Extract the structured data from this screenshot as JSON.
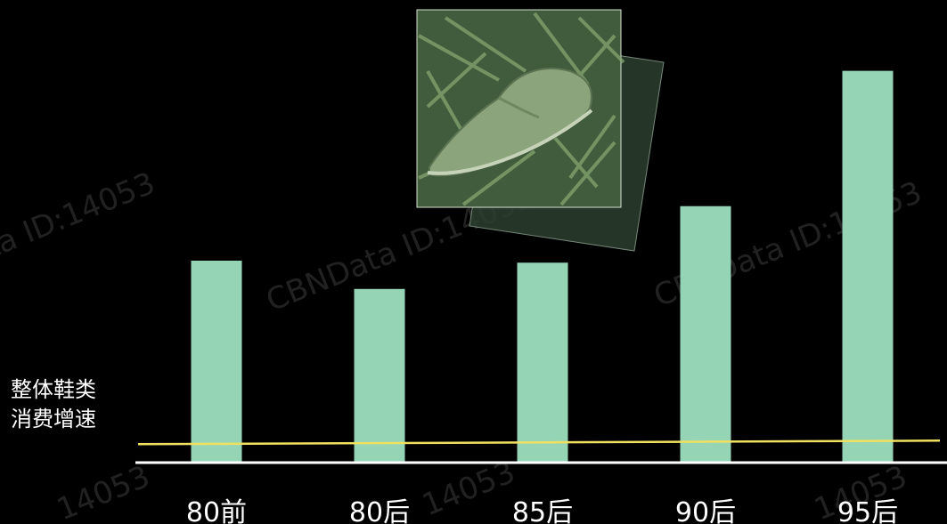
{
  "chart_data": {
    "type": "bar",
    "categories": [
      "80前",
      "80后",
      "85后",
      "90后",
      "95后"
    ],
    "values": [
      1.0,
      0.86,
      0.99,
      1.27,
      1.94
    ],
    "reference_line": {
      "label_lines": [
        "整体鞋类",
        "消费增速"
      ],
      "value": 0.1,
      "color": "#f0e060"
    },
    "bar_color": "#96d4b6",
    "axis_color": "#ffffff",
    "grid": false,
    "legend": "none"
  },
  "watermark": {
    "texts": [
      "CBNData ID:14053",
      "ta ID:14053",
      "14053"
    ]
  }
}
